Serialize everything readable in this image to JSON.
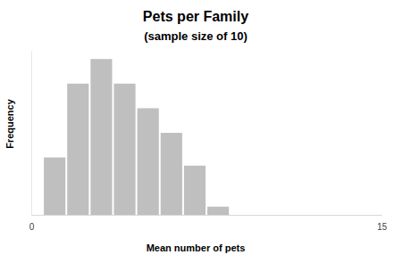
{
  "chart_data": {
    "type": "histogram",
    "title": "Pets per Family",
    "subtitle": "(sample size of 10)",
    "x_label": "Mean number of pets",
    "y_label": "Frequency",
    "bins": [
      0.5,
      1.5,
      2.5,
      3.5,
      4.5,
      5.5,
      6.5,
      7.5,
      8.5
    ],
    "values": [
      7,
      16,
      19,
      16,
      13,
      10,
      6,
      1
    ],
    "color": "#bfbfbf",
    "xlim": [
      0,
      15
    ],
    "xticks": [
      0,
      15
    ],
    "ylim": [
      0,
      20
    ],
    "tick_labels": "x",
    "grid": false
  }
}
